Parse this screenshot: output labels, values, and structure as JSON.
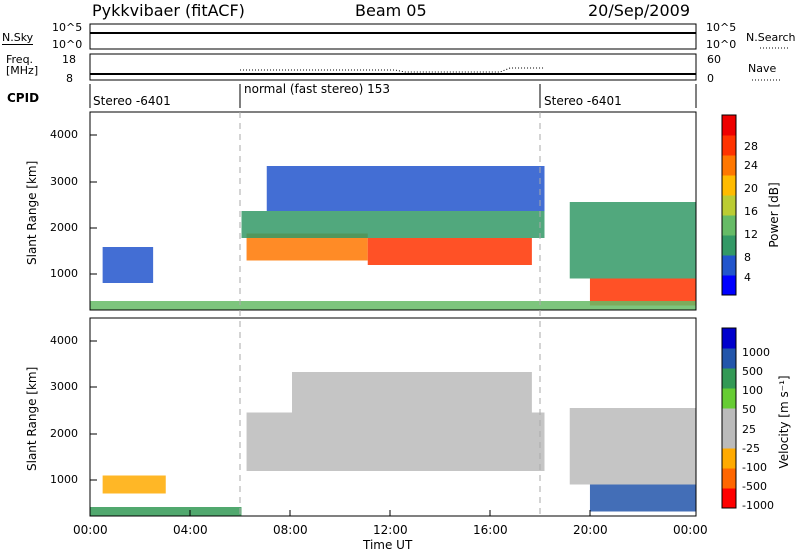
{
  "header": {
    "radar": "Pykkvibaer (fitACF)",
    "beam": "Beam 05",
    "date": "20/Sep/2009"
  },
  "noise_panel": {
    "left_label": "N.Sky",
    "right_label": "N.Search",
    "left_ticks": [
      "10^5",
      "10^0"
    ],
    "right_ticks": [
      "10^5",
      "10^0"
    ]
  },
  "freq_panel": {
    "left_label_line1": "Freq.",
    "left_label_line2": "[MHz]",
    "left_ticks": [
      "18",
      "8"
    ],
    "right_label": "Nave",
    "right_ticks": [
      "60",
      "0"
    ]
  },
  "cpid": {
    "label": "CPID",
    "segments": [
      {
        "name": "Stereo -6401",
        "start_h": 0
      },
      {
        "name": "normal (fast stereo) 153",
        "start_h": 6
      },
      {
        "name": "Stereo -6401",
        "start_h": 18
      }
    ]
  },
  "colors": {
    "power_scale": [
      "#0000ff",
      "#2255cc",
      "#339966",
      "#66bb66",
      "#bbcc33",
      "#ffbb00",
      "#ff7700",
      "#ff3300",
      "#ee0000"
    ],
    "velocity_scale": [
      "#ff0000",
      "#ff6600",
      "#ffaa00",
      "#bbbbbb",
      "#bbbbbb",
      "#66cc33",
      "#339955",
      "#2255aa",
      "#0000cc"
    ]
  },
  "chart_data": [
    {
      "type": "heatmap",
      "name": "power",
      "ylabel": "Slant Range [km]",
      "yticks": [
        1000,
        2000,
        3000,
        4000
      ],
      "ylim": [
        200,
        4600
      ],
      "xlim": [
        0,
        24
      ],
      "colorbar_label": "Power [dB]",
      "colorbar_ticks": [
        "28",
        "24",
        "20",
        "16",
        "12",
        "8",
        "4"
      ],
      "bands": [
        {
          "x0": 6.2,
          "x1": 11.0,
          "y0": 1300,
          "y1": 1900,
          "value": 24
        },
        {
          "x0": 11.0,
          "x1": 17.5,
          "y0": 1200,
          "y1": 1800,
          "value": 26
        },
        {
          "x0": 6.0,
          "x1": 18.0,
          "y0": 1800,
          "y1": 2400,
          "value": 10
        },
        {
          "x0": 7.0,
          "x1": 18.0,
          "y0": 2400,
          "y1": 3400,
          "value": 6
        },
        {
          "x0": 19.8,
          "x1": 24.0,
          "y0": 300,
          "y1": 900,
          "value": 25
        },
        {
          "x0": 19.0,
          "x1": 24.0,
          "y0": 900,
          "y1": 2600,
          "value": 8
        },
        {
          "x0": 0.0,
          "x1": 24.0,
          "y0": 200,
          "y1": 400,
          "value": 12
        },
        {
          "x0": 0.5,
          "x1": 2.5,
          "y0": 800,
          "y1": 1600,
          "value": 5
        }
      ]
    },
    {
      "type": "heatmap",
      "name": "velocity",
      "ylabel": "Slant Range [km]",
      "yticks": [
        1000,
        2000,
        3000,
        4000
      ],
      "ylim": [
        200,
        4600
      ],
      "xlim": [
        0,
        24
      ],
      "xticks": [
        "00:00",
        "04:00",
        "08:00",
        "12:00",
        "16:00",
        "20:00",
        "00:00"
      ],
      "xlabel": "Time UT",
      "colorbar_label": "Velocity [m s⁻¹]",
      "colorbar_ticks": [
        "1000",
        "500",
        "100",
        "50",
        "25",
        "-25",
        "-100",
        "-500",
        "-1000"
      ],
      "bands": [
        {
          "x0": 6.2,
          "x1": 18.0,
          "y0": 1200,
          "y1": 2500,
          "value": 0
        },
        {
          "x0": 8.0,
          "x1": 17.5,
          "y0": 2500,
          "y1": 3400,
          "value": 0
        },
        {
          "x0": 19.8,
          "x1": 24.0,
          "y0": 300,
          "y1": 900,
          "value": 300
        },
        {
          "x0": 19.0,
          "x1": 24.0,
          "y0": 900,
          "y1": 2600,
          "value": 0
        },
        {
          "x0": 0.0,
          "x1": 6.0,
          "y0": 200,
          "y1": 400,
          "value": 60
        },
        {
          "x0": 0.5,
          "x1": 3.0,
          "y0": 700,
          "y1": 1100,
          "value": -150
        }
      ]
    }
  ]
}
